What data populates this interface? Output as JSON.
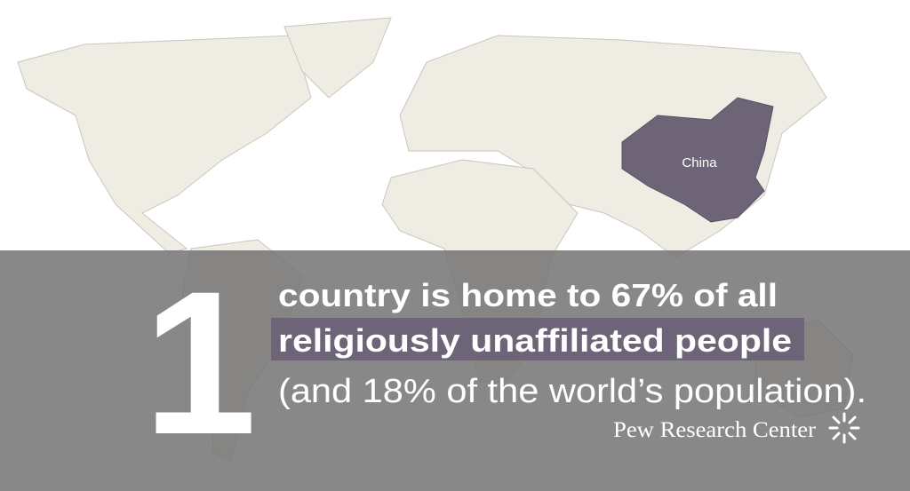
{
  "map": {
    "label": "China"
  },
  "headline": {
    "number": "1",
    "line1": "country is home to 67% of all",
    "line2": "religiously unaffiliated people",
    "line3": "(and 18% of the world’s population)."
  },
  "footer": {
    "brand": "Pew Research Center"
  }
}
